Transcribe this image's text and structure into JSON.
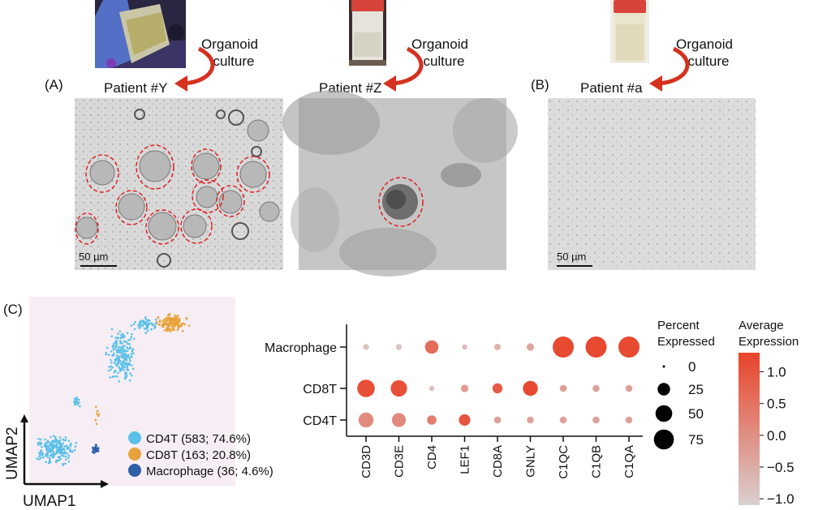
{
  "panels": {
    "A": {
      "letter": "(A)"
    },
    "B": {
      "letter": "(B)"
    },
    "C": {
      "letter": "(C)"
    }
  },
  "photos": [
    {
      "patient": "Patient #Y",
      "arrow_label": "Organoid culture",
      "organoid_line1": "Organoid",
      "organoid_line2": "culture",
      "scale": "50 µm"
    },
    {
      "patient": "Patient #Z",
      "arrow_label": "Organoid culture",
      "organoid_line1": "Organoid",
      "organoid_line2": "culture"
    },
    {
      "patient": "Patient #a",
      "arrow_label": "Organoid culture",
      "organoid_line1": "Organoid",
      "organoid_line2": "culture",
      "scale": "50 µm"
    }
  ],
  "colors": {
    "cd4t": "#5bc0e8",
    "cd8t": "#e9a23b",
    "macrophage": "#2e5fa8",
    "expr_high": "#e8432a",
    "expr_low": "#d9d0d0",
    "umap_bg": "#f6eef4",
    "circle_dash": "#e02020"
  },
  "umap": {
    "xlabel": "UMAP1",
    "ylabel": "UMAP2",
    "legend": [
      {
        "label": "CD4T (583; 74.6%)",
        "color": "#5bc0e8"
      },
      {
        "label": "CD8T (163; 20.8%)",
        "color": "#e9a23b"
      },
      {
        "label": "Macrophage (36; 4.6%)",
        "color": "#2e5fa8"
      }
    ]
  },
  "chart_data": {
    "type": "dotplot",
    "genes": [
      "CD3D",
      "CD3E",
      "CD4",
      "LEF1",
      "CD8A",
      "GNLY",
      "C1QC",
      "C1QB",
      "C1QA"
    ],
    "cell_types": [
      "Macrophage",
      "CD8T",
      "CD4T"
    ],
    "percent_expressed": [
      [
        3,
        3,
        30,
        2,
        4,
        6,
        85,
        85,
        85
      ],
      [
        55,
        48,
        2,
        6,
        14,
        38,
        5,
        5,
        5
      ],
      [
        38,
        32,
        12,
        20,
        5,
        5,
        5,
        5,
        5
      ]
    ],
    "average_expression": [
      [
        -0.9,
        -0.9,
        0.6,
        -0.8,
        -0.6,
        -0.4,
        1.2,
        1.2,
        1.2
      ],
      [
        1.1,
        1.1,
        -0.9,
        -0.2,
        0.9,
        1.2,
        -0.3,
        -0.3,
        -0.3
      ],
      [
        0.1,
        0.1,
        0.3,
        1.0,
        -0.3,
        -0.3,
        -0.3,
        -0.3,
        -0.3
      ]
    ],
    "size_legend_title_1": "Percent",
    "size_legend_title_2": "Expressed",
    "size_legend_values": [
      0,
      25,
      50,
      75
    ],
    "color_legend_title_1": "Average",
    "color_legend_title_2": "Expression",
    "color_legend_ticks": [
      "1.0",
      "0.5",
      "0.0",
      "−0.5",
      "−1.0"
    ],
    "color_range": [
      -1.1,
      1.3
    ]
  }
}
